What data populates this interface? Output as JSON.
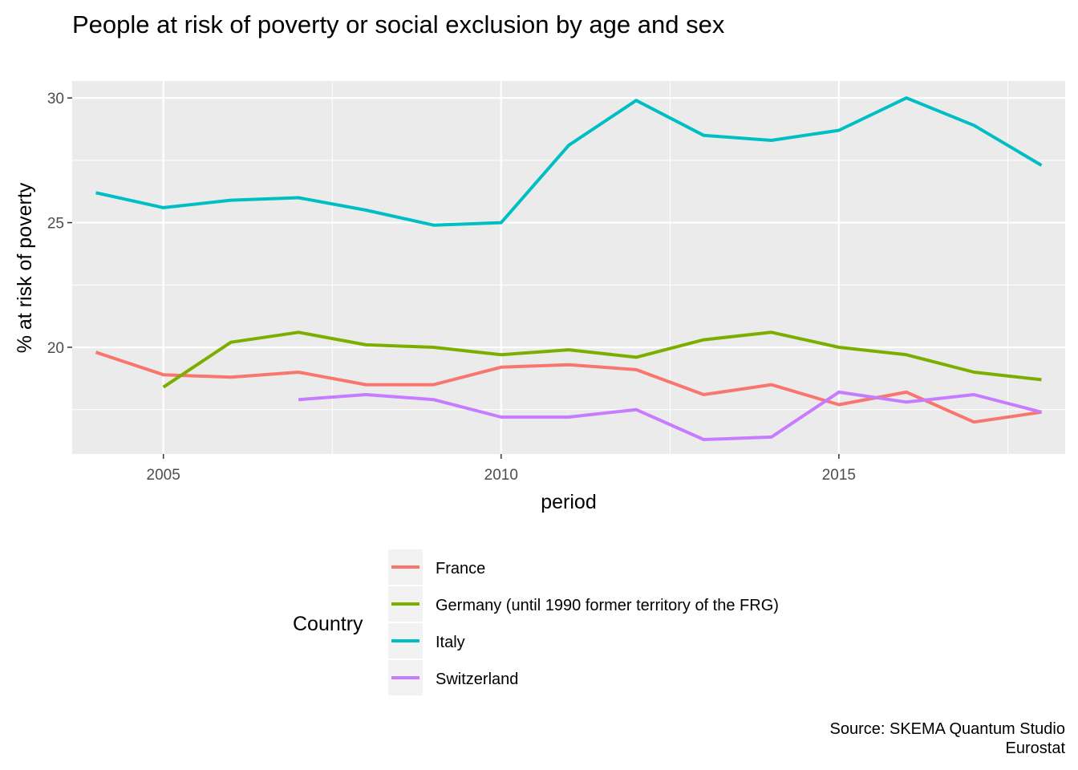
{
  "chart_data": {
    "type": "line",
    "title": "People at risk of poverty or social exclusion by age and sex",
    "xlabel": "period",
    "ylabel": "% at risk of poverty",
    "xlim": [
      2003.65,
      2018.35
    ],
    "ylim": [
      15.72,
      30.68
    ],
    "xticks": [
      2005,
      2010,
      2015
    ],
    "xtick_labels": [
      "2005",
      "2010",
      "2015"
    ],
    "x_minor_gridlines": [
      2007.5,
      2012.5,
      2017.5
    ],
    "yticks": [
      20,
      25,
      30
    ],
    "ytick_labels": [
      "20",
      "25",
      "30"
    ],
    "y_minor_gridlines": [
      17.5,
      22.5,
      27.5
    ],
    "grid": true,
    "legend": {
      "title": "Country",
      "position": "bottom"
    },
    "caption": [
      "Source: SKEMA Quantum Studio",
      "Eurostat"
    ],
    "series": [
      {
        "name": "France",
        "color": "#F8766D",
        "x": [
          2004,
          2005,
          2006,
          2007,
          2008,
          2009,
          2010,
          2011,
          2012,
          2013,
          2014,
          2015,
          2016,
          2017,
          2018
        ],
        "values": [
          19.8,
          18.9,
          18.8,
          19.0,
          18.5,
          18.5,
          19.2,
          19.3,
          19.1,
          18.1,
          18.5,
          17.7,
          18.2,
          17.0,
          17.4
        ]
      },
      {
        "name": "Germany (until 1990 former territory of the FRG)",
        "color": "#7CAE00",
        "x": [
          2005,
          2006,
          2007,
          2008,
          2009,
          2010,
          2011,
          2012,
          2013,
          2014,
          2015,
          2016,
          2017,
          2018
        ],
        "values": [
          18.4,
          20.2,
          20.6,
          20.1,
          20.0,
          19.7,
          19.9,
          19.6,
          20.3,
          20.6,
          20.0,
          19.7,
          19.0,
          18.7
        ]
      },
      {
        "name": "Italy",
        "color": "#00BFC4",
        "x": [
          2004,
          2005,
          2006,
          2007,
          2008,
          2009,
          2010,
          2011,
          2012,
          2013,
          2014,
          2015,
          2016,
          2017,
          2018
        ],
        "values": [
          26.2,
          25.6,
          25.9,
          26.0,
          25.5,
          24.9,
          25.0,
          28.1,
          29.9,
          28.5,
          28.3,
          28.7,
          30.0,
          28.9,
          27.3
        ]
      },
      {
        "name": "Switzerland",
        "color": "#C77CFF",
        "x": [
          2007,
          2008,
          2009,
          2010,
          2011,
          2012,
          2013,
          2014,
          2015,
          2016,
          2017,
          2018
        ],
        "values": [
          17.9,
          18.1,
          17.9,
          17.2,
          17.2,
          17.5,
          16.3,
          16.4,
          18.2,
          17.8,
          18.1,
          17.4
        ]
      }
    ]
  }
}
